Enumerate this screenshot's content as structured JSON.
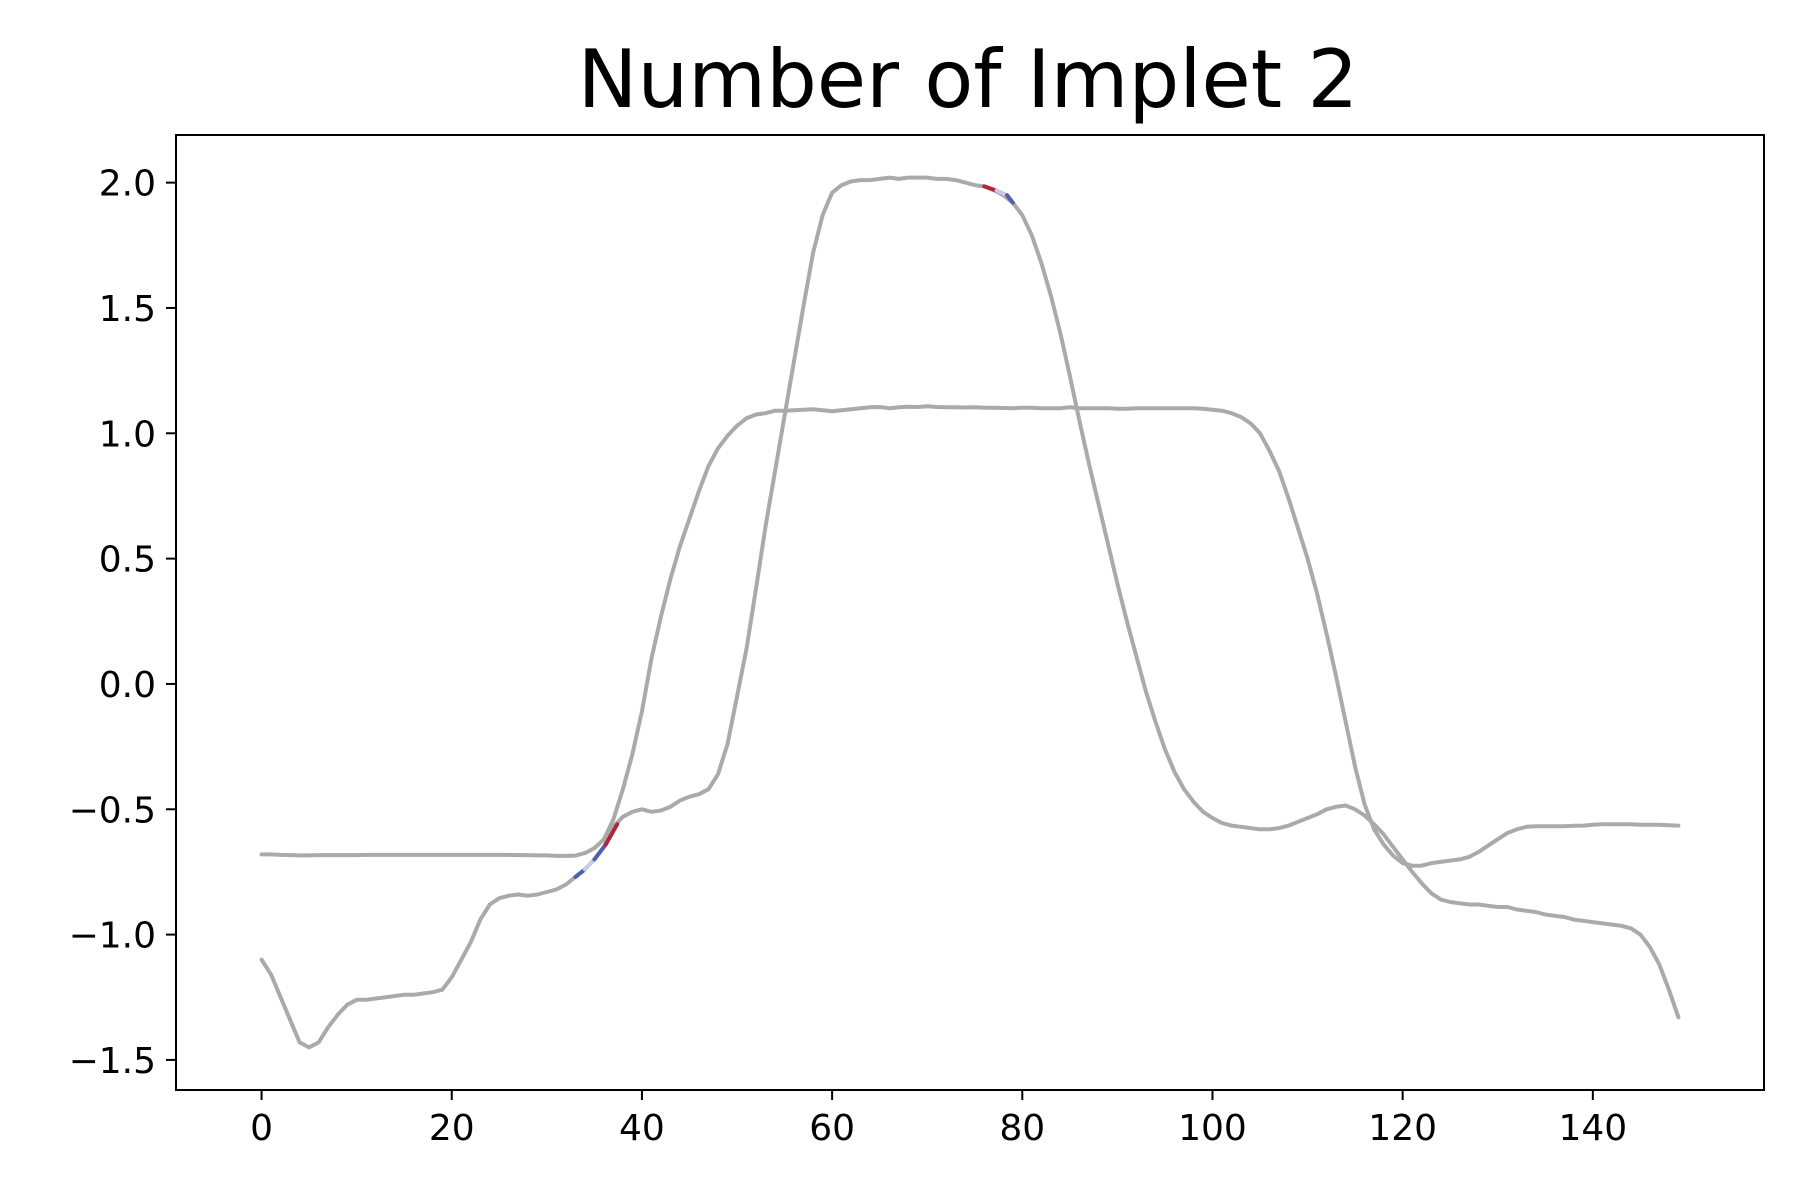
{
  "chart_data": {
    "type": "line",
    "title": "Number of Implet 2",
    "xlabel": "",
    "ylabel": "",
    "xlim": [
      -9,
      158
    ],
    "ylim": [
      -1.62,
      2.19
    ],
    "xticks": [
      0,
      20,
      40,
      60,
      80,
      100,
      120,
      140
    ],
    "yticks": [
      2.0,
      1.5,
      1.0,
      0.5,
      0.0,
      -0.5,
      -1.0,
      -1.5
    ],
    "xtick_labels": [
      "0",
      "20",
      "40",
      "60",
      "80",
      "100",
      "120",
      "140"
    ],
    "ytick_labels": [
      "2.0",
      "1.5",
      "1.0",
      "0.5",
      "0.0",
      "−0.5",
      "−1.0",
      "−1.5"
    ],
    "grid": false,
    "line_color": "#aaaaaa",
    "highlight_colors": {
      "red": "#b0243c",
      "blue": "#5060b0",
      "light_blue": "#c8cce8"
    },
    "series": [
      {
        "x": [
          0,
          1,
          2,
          3,
          4,
          5,
          6,
          7,
          8,
          9,
          10,
          11,
          12,
          13,
          14,
          15,
          16,
          17,
          18,
          19,
          20,
          21,
          22,
          23,
          24,
          25,
          26,
          27,
          28,
          29,
          30,
          31,
          32,
          33,
          34,
          35,
          36,
          37,
          38,
          39,
          40,
          41,
          42,
          43,
          44,
          45,
          46,
          47,
          48,
          49,
          50,
          51,
          52,
          53,
          54,
          55,
          56,
          57,
          58,
          59,
          60,
          61,
          62,
          63,
          64,
          65,
          66,
          67,
          68,
          69,
          70,
          71,
          72,
          73,
          74,
          75,
          76,
          77,
          78,
          79,
          80,
          81,
          82,
          83,
          84,
          85,
          86,
          87,
          88,
          89,
          90,
          91,
          92,
          93,
          94,
          95,
          96,
          97,
          98,
          99,
          100,
          101,
          102,
          103,
          104,
          105,
          106,
          107,
          108,
          109,
          110,
          111,
          112,
          113,
          114,
          115,
          116,
          117,
          118,
          119,
          120,
          121,
          122,
          123,
          124,
          125,
          126,
          127,
          128,
          129,
          130,
          131,
          132,
          133,
          134,
          135,
          136,
          137,
          138,
          139,
          140,
          141,
          142,
          143,
          144,
          145,
          146,
          147,
          148,
          149
        ],
        "y": [
          -1.1,
          -1.16,
          -1.25,
          -1.34,
          -1.43,
          -1.45,
          -1.43,
          -1.37,
          -1.32,
          -1.28,
          -1.26,
          -1.26,
          -1.255,
          -1.25,
          -1.245,
          -1.24,
          -1.24,
          -1.235,
          -1.23,
          -1.22,
          -1.17,
          -1.1,
          -1.03,
          -0.94,
          -0.88,
          -0.855,
          -0.845,
          -0.84,
          -0.845,
          -0.84,
          -0.83,
          -0.82,
          -0.8,
          -0.77,
          -0.74,
          -0.7,
          -0.65,
          -0.57,
          -0.53,
          -0.51,
          -0.5,
          -0.51,
          -0.505,
          -0.49,
          -0.465,
          -0.45,
          -0.44,
          -0.42,
          -0.36,
          -0.24,
          -0.05,
          0.14,
          0.38,
          0.63,
          0.85,
          1.07,
          1.29,
          1.51,
          1.72,
          1.87,
          1.96,
          1.99,
          2.005,
          2.01,
          2.01,
          2.015,
          2.02,
          2.015,
          2.02,
          2.02,
          2.02,
          2.015,
          2.015,
          2.01,
          2.0,
          1.99,
          1.985,
          1.97,
          1.95,
          1.92,
          1.87,
          1.79,
          1.68,
          1.55,
          1.4,
          1.23,
          1.05,
          0.88,
          0.72,
          0.56,
          0.4,
          0.25,
          0.11,
          -0.03,
          -0.15,
          -0.26,
          -0.35,
          -0.42,
          -0.47,
          -0.51,
          -0.535,
          -0.555,
          -0.565,
          -0.57,
          -0.575,
          -0.58,
          -0.58,
          -0.575,
          -0.565,
          -0.55,
          -0.535,
          -0.52,
          -0.5,
          -0.49,
          -0.485,
          -0.5,
          -0.525,
          -0.56,
          -0.6,
          -0.65,
          -0.7,
          -0.75,
          -0.795,
          -0.835,
          -0.86,
          -0.87,
          -0.875,
          -0.88,
          -0.88,
          -0.885,
          -0.89,
          -0.89,
          -0.9,
          -0.905,
          -0.91,
          -0.92,
          -0.925,
          -0.93,
          -0.94,
          -0.945,
          -0.95,
          -0.955,
          -0.96,
          -0.965,
          -0.975,
          -1.0,
          -1.05,
          -1.12,
          -1.22,
          -1.33
        ]
      },
      {
        "x": [
          0,
          1,
          2,
          3,
          4,
          5,
          6,
          7,
          8,
          9,
          10,
          11,
          12,
          13,
          14,
          15,
          16,
          17,
          18,
          19,
          20,
          21,
          22,
          23,
          24,
          25,
          26,
          27,
          28,
          29,
          30,
          31,
          32,
          33,
          34,
          35,
          36,
          37,
          38,
          39,
          40,
          41,
          42,
          43,
          44,
          45,
          46,
          47,
          48,
          49,
          50,
          51,
          52,
          53,
          54,
          55,
          56,
          57,
          58,
          59,
          60,
          61,
          62,
          63,
          64,
          65,
          66,
          67,
          68,
          69,
          70,
          71,
          72,
          73,
          74,
          75,
          76,
          77,
          78,
          79,
          80,
          81,
          82,
          83,
          84,
          85,
          86,
          87,
          88,
          89,
          90,
          91,
          92,
          93,
          94,
          95,
          96,
          97,
          98,
          99,
          100,
          101,
          102,
          103,
          104,
          105,
          106,
          107,
          108,
          109,
          110,
          111,
          112,
          113,
          114,
          115,
          116,
          117,
          118,
          119,
          120,
          121,
          122,
          123,
          124,
          125,
          126,
          127,
          128,
          129,
          130,
          131,
          132,
          133,
          134,
          135,
          136,
          137,
          138,
          139,
          140,
          141,
          142,
          143,
          144,
          145,
          146,
          147,
          148,
          149
        ],
        "y": [
          -0.68,
          -0.68,
          -0.682,
          -0.683,
          -0.684,
          -0.684,
          -0.683,
          -0.683,
          -0.683,
          -0.683,
          -0.683,
          -0.682,
          -0.682,
          -0.682,
          -0.682,
          -0.682,
          -0.682,
          -0.682,
          -0.682,
          -0.682,
          -0.682,
          -0.682,
          -0.682,
          -0.682,
          -0.682,
          -0.682,
          -0.682,
          -0.683,
          -0.683,
          -0.684,
          -0.684,
          -0.686,
          -0.686,
          -0.685,
          -0.675,
          -0.655,
          -0.62,
          -0.54,
          -0.42,
          -0.28,
          -0.11,
          0.1,
          0.27,
          0.42,
          0.55,
          0.66,
          0.77,
          0.87,
          0.94,
          0.99,
          1.03,
          1.06,
          1.075,
          1.08,
          1.09,
          1.09,
          1.092,
          1.094,
          1.096,
          1.092,
          1.088,
          1.092,
          1.096,
          1.1,
          1.104,
          1.105,
          1.1,
          1.104,
          1.106,
          1.105,
          1.108,
          1.105,
          1.104,
          1.104,
          1.103,
          1.104,
          1.102,
          1.102,
          1.101,
          1.1,
          1.102,
          1.102,
          1.1,
          1.1,
          1.1,
          1.104,
          1.1,
          1.1,
          1.1,
          1.1,
          1.098,
          1.098,
          1.1,
          1.1,
          1.1,
          1.1,
          1.1,
          1.1,
          1.1,
          1.098,
          1.094,
          1.09,
          1.08,
          1.065,
          1.04,
          1.0,
          0.93,
          0.85,
          0.74,
          0.62,
          0.5,
          0.36,
          0.2,
          0.03,
          -0.15,
          -0.33,
          -0.48,
          -0.58,
          -0.64,
          -0.685,
          -0.715,
          -0.725,
          -0.725,
          -0.715,
          -0.71,
          -0.705,
          -0.7,
          -0.69,
          -0.67,
          -0.645,
          -0.62,
          -0.595,
          -0.58,
          -0.57,
          -0.568,
          -0.568,
          -0.568,
          -0.568,
          -0.566,
          -0.565,
          -0.562,
          -0.56,
          -0.56,
          -0.56,
          -0.56,
          -0.562,
          -0.562,
          -0.562,
          -0.564,
          -0.565
        ]
      }
    ],
    "highlights": [
      {
        "x": [
          33,
          34
        ],
        "y": [
          -0.77,
          -0.74
        ],
        "color": "blue"
      },
      {
        "x": [
          34,
          35
        ],
        "y": [
          -0.74,
          -0.7
        ],
        "color": "light_blue"
      },
      {
        "x": [
          35,
          36.2
        ],
        "y": [
          -0.7,
          -0.64
        ],
        "color": "blue"
      },
      {
        "x": [
          36.2,
          37.4
        ],
        "y": [
          -0.64,
          -0.56
        ],
        "color": "red"
      },
      {
        "x": [
          76,
          77.3
        ],
        "y": [
          1.985,
          1.968
        ],
        "color": "red"
      },
      {
        "x": [
          77.3,
          78.4
        ],
        "y": [
          1.968,
          1.95
        ],
        "color": "light_blue"
      },
      {
        "x": [
          78.4,
          79
        ],
        "y": [
          1.95,
          1.92
        ],
        "color": "blue"
      }
    ]
  }
}
